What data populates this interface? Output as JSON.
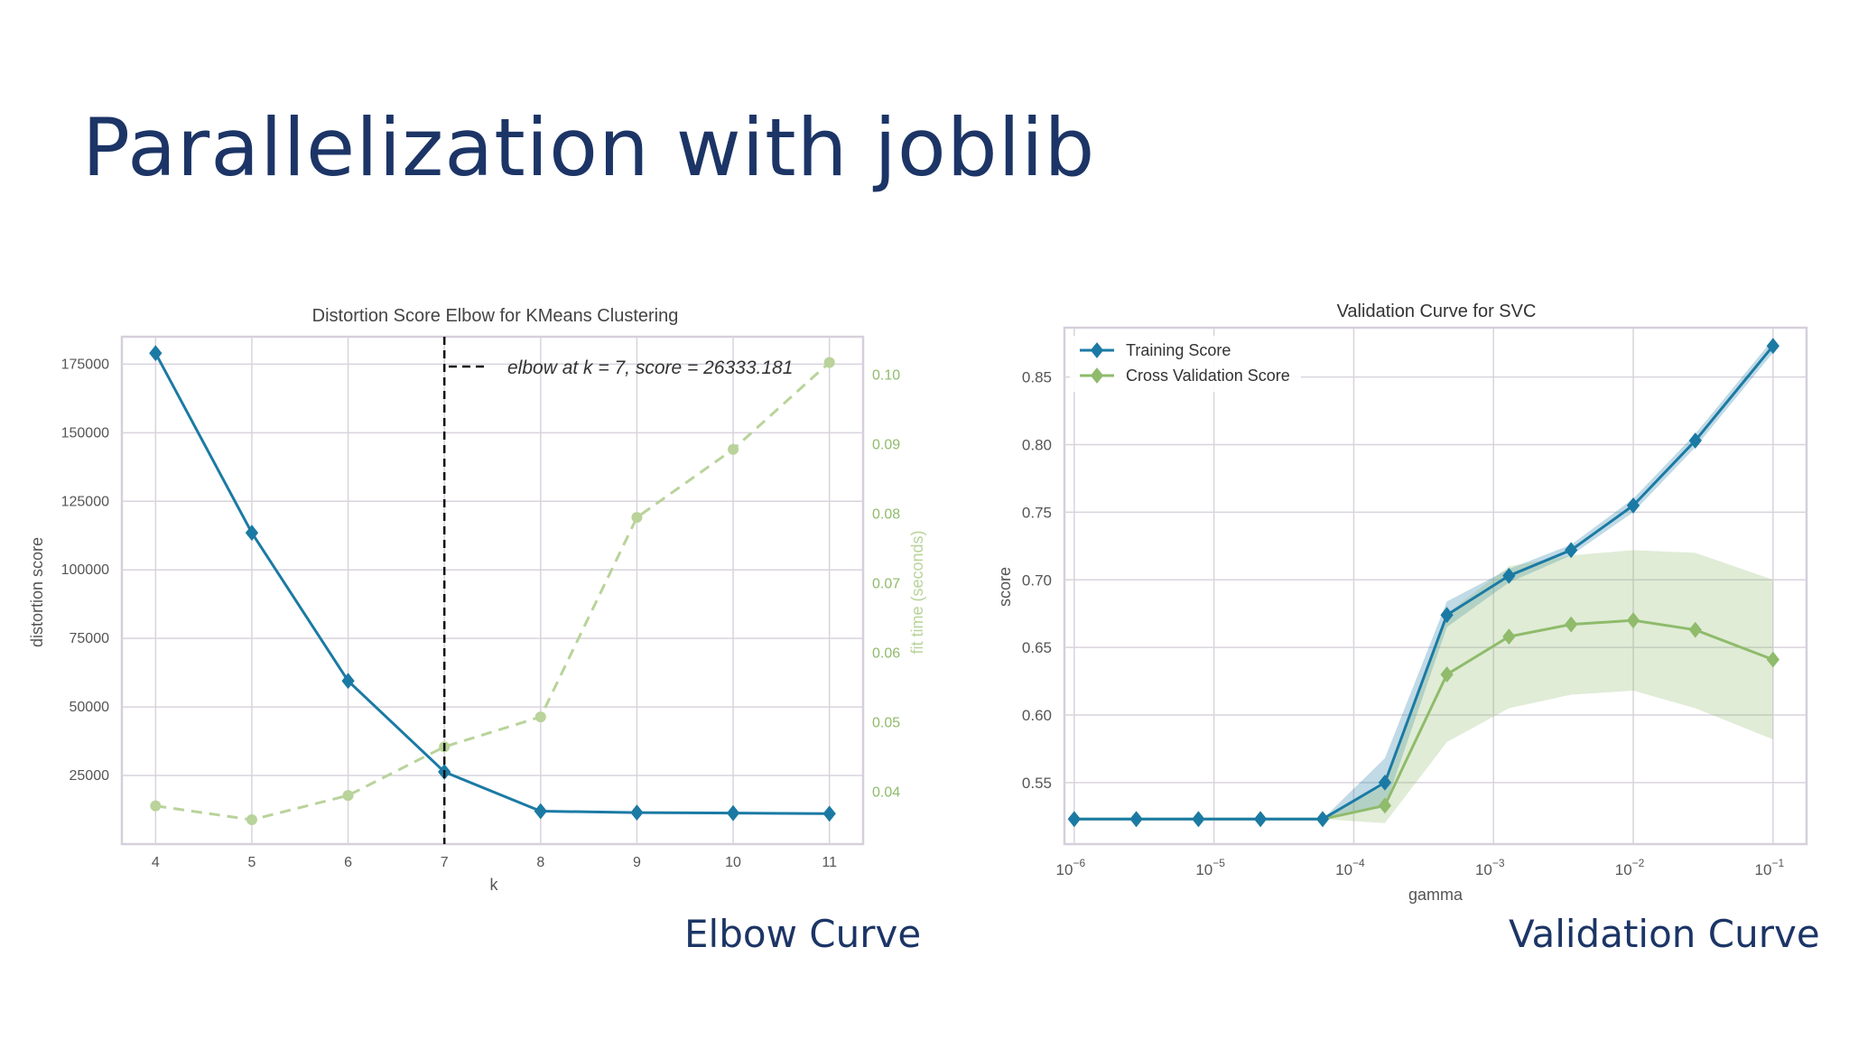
{
  "slide": {
    "title": "Parallelization with joblib",
    "captions": {
      "left": "Elbow Curve",
      "right": "Validation Curve"
    }
  },
  "colors": {
    "title": "#1c3566",
    "blue": "#1b7aa4",
    "green": "#8fbb6b",
    "green_light": "#b9d39a",
    "grid": "#d9d3dd",
    "frame": "#d6cfdb"
  },
  "chart_data": [
    {
      "type": "line",
      "title": "Distortion Score Elbow for KMeans Clustering",
      "xlabel": "k",
      "ylabel": "distortion score",
      "y2label": "fit time (seconds)",
      "x": [
        4,
        5,
        6,
        7,
        8,
        9,
        10,
        11
      ],
      "xticks": [
        "4",
        "5",
        "6",
        "7",
        "8",
        "9",
        "10",
        "11"
      ],
      "xlim": [
        3.65,
        11.35
      ],
      "ylim": [
        0,
        185000
      ],
      "yticks": [
        25000,
        50000,
        75000,
        100000,
        125000,
        150000,
        175000
      ],
      "ytick_labels": [
        "25000",
        "50000",
        "75000",
        "100000",
        "125000",
        "150000",
        "175000"
      ],
      "y2lim": [
        0.0325,
        0.1055
      ],
      "y2ticks": [
        0.04,
        0.05,
        0.06,
        0.07,
        0.08,
        0.09,
        0.1
      ],
      "y2tick_labels": [
        "0.04",
        "0.05",
        "0.06",
        "0.07",
        "0.08",
        "0.09",
        "0.10"
      ],
      "series": [
        {
          "name": "distortion score",
          "axis": "left",
          "values": [
            179000,
            113500,
            59500,
            26333,
            12000,
            11500,
            11300,
            11100
          ]
        },
        {
          "name": "fit time (seconds)",
          "axis": "right",
          "values": [
            0.038,
            0.036,
            0.0395,
            0.0465,
            0.0508,
            0.0795,
            0.0893,
            0.1018
          ]
        }
      ],
      "annotation": {
        "x": 7,
        "label": "elbow at k = 7, score = 26333.181"
      },
      "grid": true,
      "legend": "top-right"
    },
    {
      "type": "line",
      "title": "Validation Curve for SVC",
      "xlabel": "gamma",
      "ylabel": "score",
      "xscale": "log",
      "xlim": [
        -6.07,
        -0.76
      ],
      "xticks": [
        -6,
        -5,
        -4,
        -3,
        -2,
        -1
      ],
      "xtick_labels": [
        {
          "base": "10",
          "exp": "−6"
        },
        {
          "base": "10",
          "exp": "−5"
        },
        {
          "base": "10",
          "exp": "−4"
        },
        {
          "base": "10",
          "exp": "−3"
        },
        {
          "base": "10",
          "exp": "−2"
        },
        {
          "base": "10",
          "exp": "−1"
        }
      ],
      "ylim": [
        0.5045,
        0.8865
      ],
      "yticks": [
        0.55,
        0.6,
        0.65,
        0.7,
        0.75,
        0.8,
        0.85
      ],
      "ytick_labels": [
        "0.55",
        "0.60",
        "0.65",
        "0.70",
        "0.75",
        "0.80",
        "0.85"
      ],
      "x": [
        1e-06,
        2.78e-06,
        7.74e-06,
        2.15e-05,
        5.99e-05,
        0.000167,
        0.000464,
        0.00129,
        0.00359,
        0.01,
        0.0278,
        0.1
      ],
      "series": [
        {
          "name": "Training Score",
          "values": [
            0.523,
            0.523,
            0.523,
            0.523,
            0.523,
            0.55,
            0.674,
            0.703,
            0.722,
            0.755,
            0.803,
            0.873
          ],
          "band_low": [
            0.523,
            0.523,
            0.523,
            0.523,
            0.523,
            0.532,
            0.665,
            0.698,
            0.718,
            0.75,
            0.798,
            0.868
          ],
          "band_high": [
            0.523,
            0.523,
            0.523,
            0.523,
            0.523,
            0.568,
            0.684,
            0.708,
            0.726,
            0.76,
            0.808,
            0.878
          ]
        },
        {
          "name": "Cross Validation Score",
          "values": [
            0.523,
            0.523,
            0.523,
            0.523,
            0.523,
            0.533,
            0.63,
            0.658,
            0.667,
            0.67,
            0.663,
            0.641
          ],
          "band_low": [
            0.523,
            0.523,
            0.523,
            0.523,
            0.523,
            0.52,
            0.58,
            0.605,
            0.615,
            0.618,
            0.605,
            0.582
          ],
          "band_high": [
            0.523,
            0.523,
            0.523,
            0.523,
            0.523,
            0.548,
            0.675,
            0.71,
            0.718,
            0.722,
            0.72,
            0.7
          ]
        }
      ],
      "grid": true,
      "legend": "top-left"
    }
  ]
}
